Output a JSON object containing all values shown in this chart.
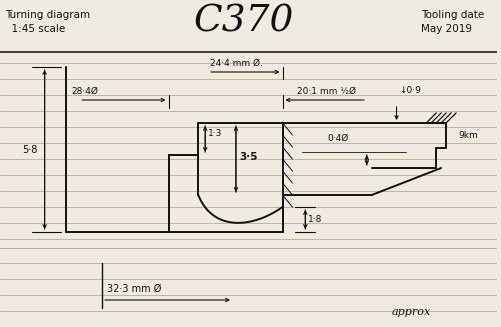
{
  "title": "C370",
  "text_turning": "Turning diagram",
  "text_scale": "  1:45 scale",
  "text_tooling": "Tooling date",
  "text_date": "May 2019",
  "bg_color": "#f0ebe0",
  "line_color": "#111111",
  "ruled_color": "#b0a590",
  "dim_24_4": "24·4 mm Ø.",
  "dim_28_4": "28·4Ø",
  "dim_20_1": "20·1 mm ½Ø",
  "dim_0_9": "↓0·9",
  "dim_1_3": "1·3",
  "dim_0_4": "0·4Ø",
  "dim_3_5": "3·5",
  "dim_1_8": "1·8",
  "dim_5_8": "5·8",
  "dim_32_3": "32·3 mm Ø",
  "label_9km": "9km",
  "label_approx": "approx",
  "fig_width": 5.01,
  "fig_height": 3.27
}
